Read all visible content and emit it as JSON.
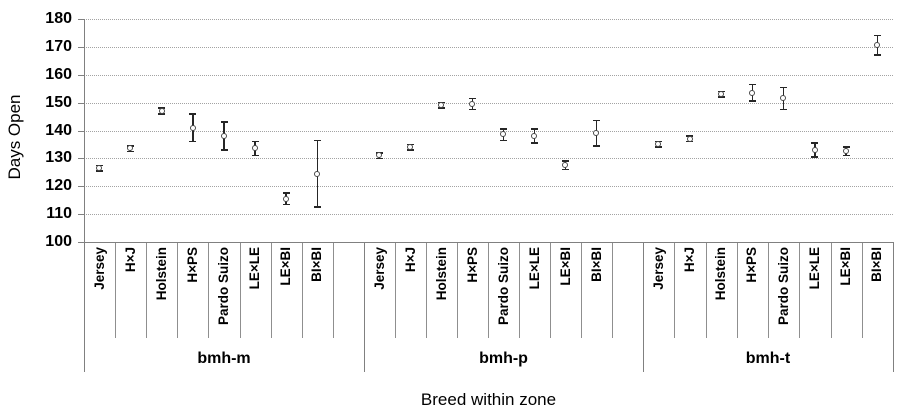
{
  "chart_data": {
    "type": "scatter",
    "title": "",
    "xlabel": "Breed within zone",
    "ylabel": "Days Open",
    "ylim": [
      100,
      180
    ],
    "yticks": [
      100,
      110,
      120,
      130,
      140,
      150,
      160,
      170,
      180
    ],
    "grid": "horizontal-dotted",
    "legend": "none",
    "marker": "open-circle-with-error-bars",
    "categories": [
      "Jersey",
      "H×J",
      "Holstein",
      "H×PS",
      "Pardo Suizo",
      "LE×LE",
      "LE×BI",
      "BI×BI"
    ],
    "zones": [
      {
        "label": "bmh-m",
        "values": [
          126.5,
          133.5,
          147,
          141,
          138,
          133.5,
          115.5,
          124.5
        ],
        "errors": [
          1,
          1,
          1,
          5,
          5,
          2.5,
          2,
          12
        ]
      },
      {
        "label": "bmh-p",
        "values": [
          131,
          134,
          149,
          149.5,
          138.5,
          138,
          127.5,
          139
        ],
        "errors": [
          1,
          1,
          1,
          2,
          2,
          2.5,
          1.5,
          4.5
        ]
      },
      {
        "label": "bmh-t",
        "values": [
          135,
          137,
          153,
          153.5,
          151.5,
          133,
          132.5,
          170.5
        ],
        "errors": [
          1,
          1,
          1,
          3,
          4,
          2.5,
          1.5,
          3.5
        ]
      }
    ],
    "colors": {
      "marker_stroke": "#4a4a4a",
      "error_bar": "#262626",
      "gridline": "#a3a3a3",
      "axis": "#808080",
      "text": "#000000",
      "background": "#ffffff"
    }
  }
}
